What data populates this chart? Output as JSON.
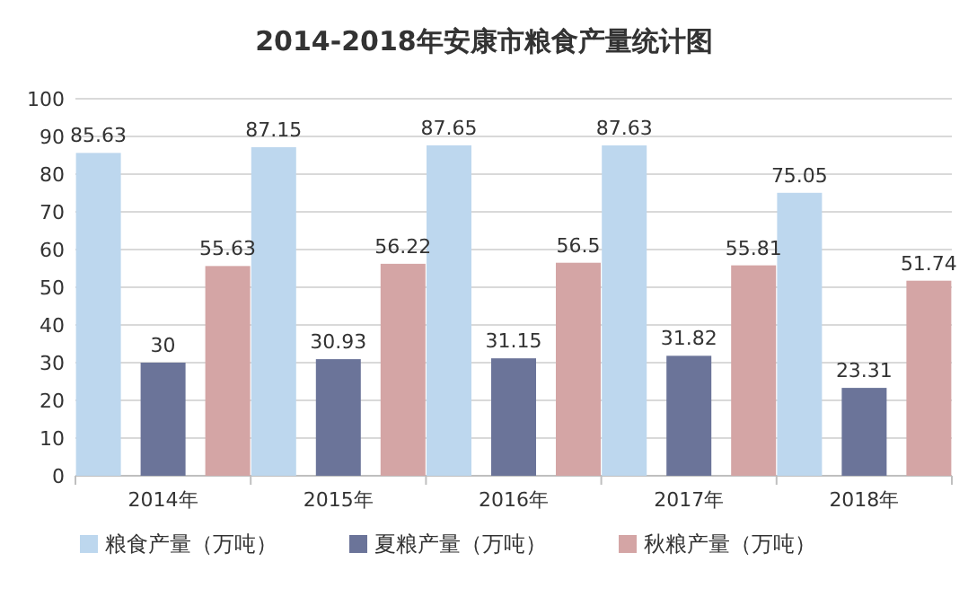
{
  "chart_data": {
    "type": "bar",
    "title": "2014-2018年安康市粮食产量统计图",
    "categories": [
      "2014年",
      "2015年",
      "2016年",
      "2017年",
      "2018年"
    ],
    "series": [
      {
        "name": "粮食产量（万吨）",
        "color": "#bdd7ee",
        "values": [
          85.63,
          87.15,
          87.65,
          87.63,
          75.05
        ]
      },
      {
        "name": "夏粮产量（万吨）",
        "color": "#6b7499",
        "values": [
          30,
          30.93,
          31.15,
          31.82,
          23.31
        ]
      },
      {
        "name": "秋粮产量（万吨）",
        "color": "#d4a5a5",
        "values": [
          55.63,
          56.22,
          56.5,
          55.81,
          51.74
        ]
      }
    ],
    "ylim": [
      0,
      100
    ],
    "yticks": [
      0,
      10,
      20,
      30,
      40,
      50,
      60,
      70,
      80,
      90,
      100
    ],
    "grid": "y",
    "legend": "bottom",
    "data_labels": true
  }
}
